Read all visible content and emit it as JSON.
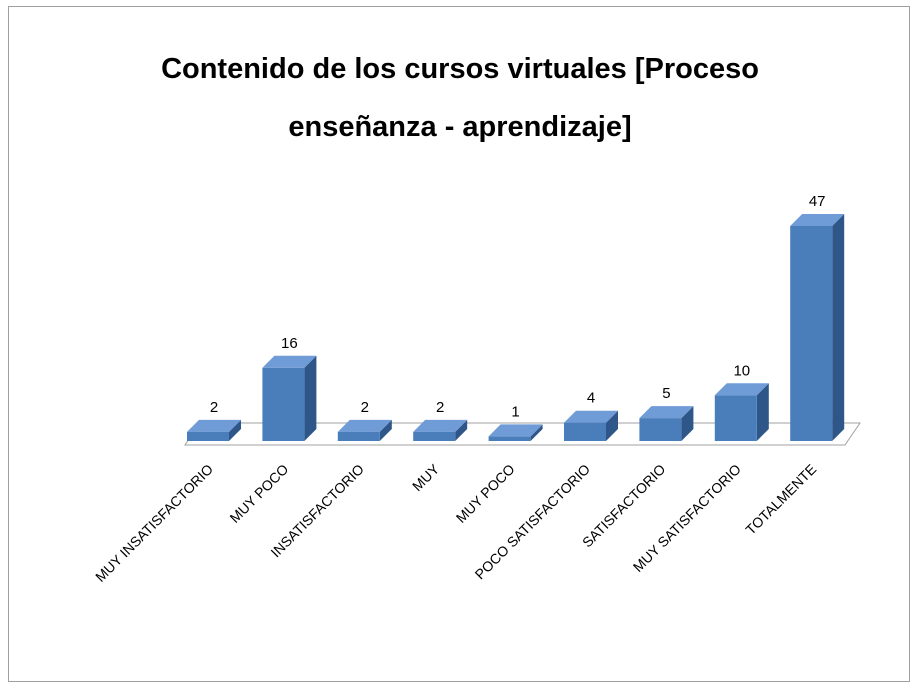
{
  "chart_data": {
    "type": "bar3d",
    "title": "Contenido de los cursos virtuales [Proceso enseñanza - aprendizaje]",
    "categories": [
      "MUY INSATISFACTORIO",
      "MUY POCO",
      "INSATISFACTORIO",
      "MUY",
      "MUY POCO",
      "POCO SATISFACTORIO",
      "SATISFACTORIO",
      "MUY SATISFACTORIO",
      "TOTALMENTE"
    ],
    "values": [
      2,
      16,
      2,
      2,
      1,
      4,
      5,
      10,
      47
    ],
    "color": "#4a7ebb"
  }
}
